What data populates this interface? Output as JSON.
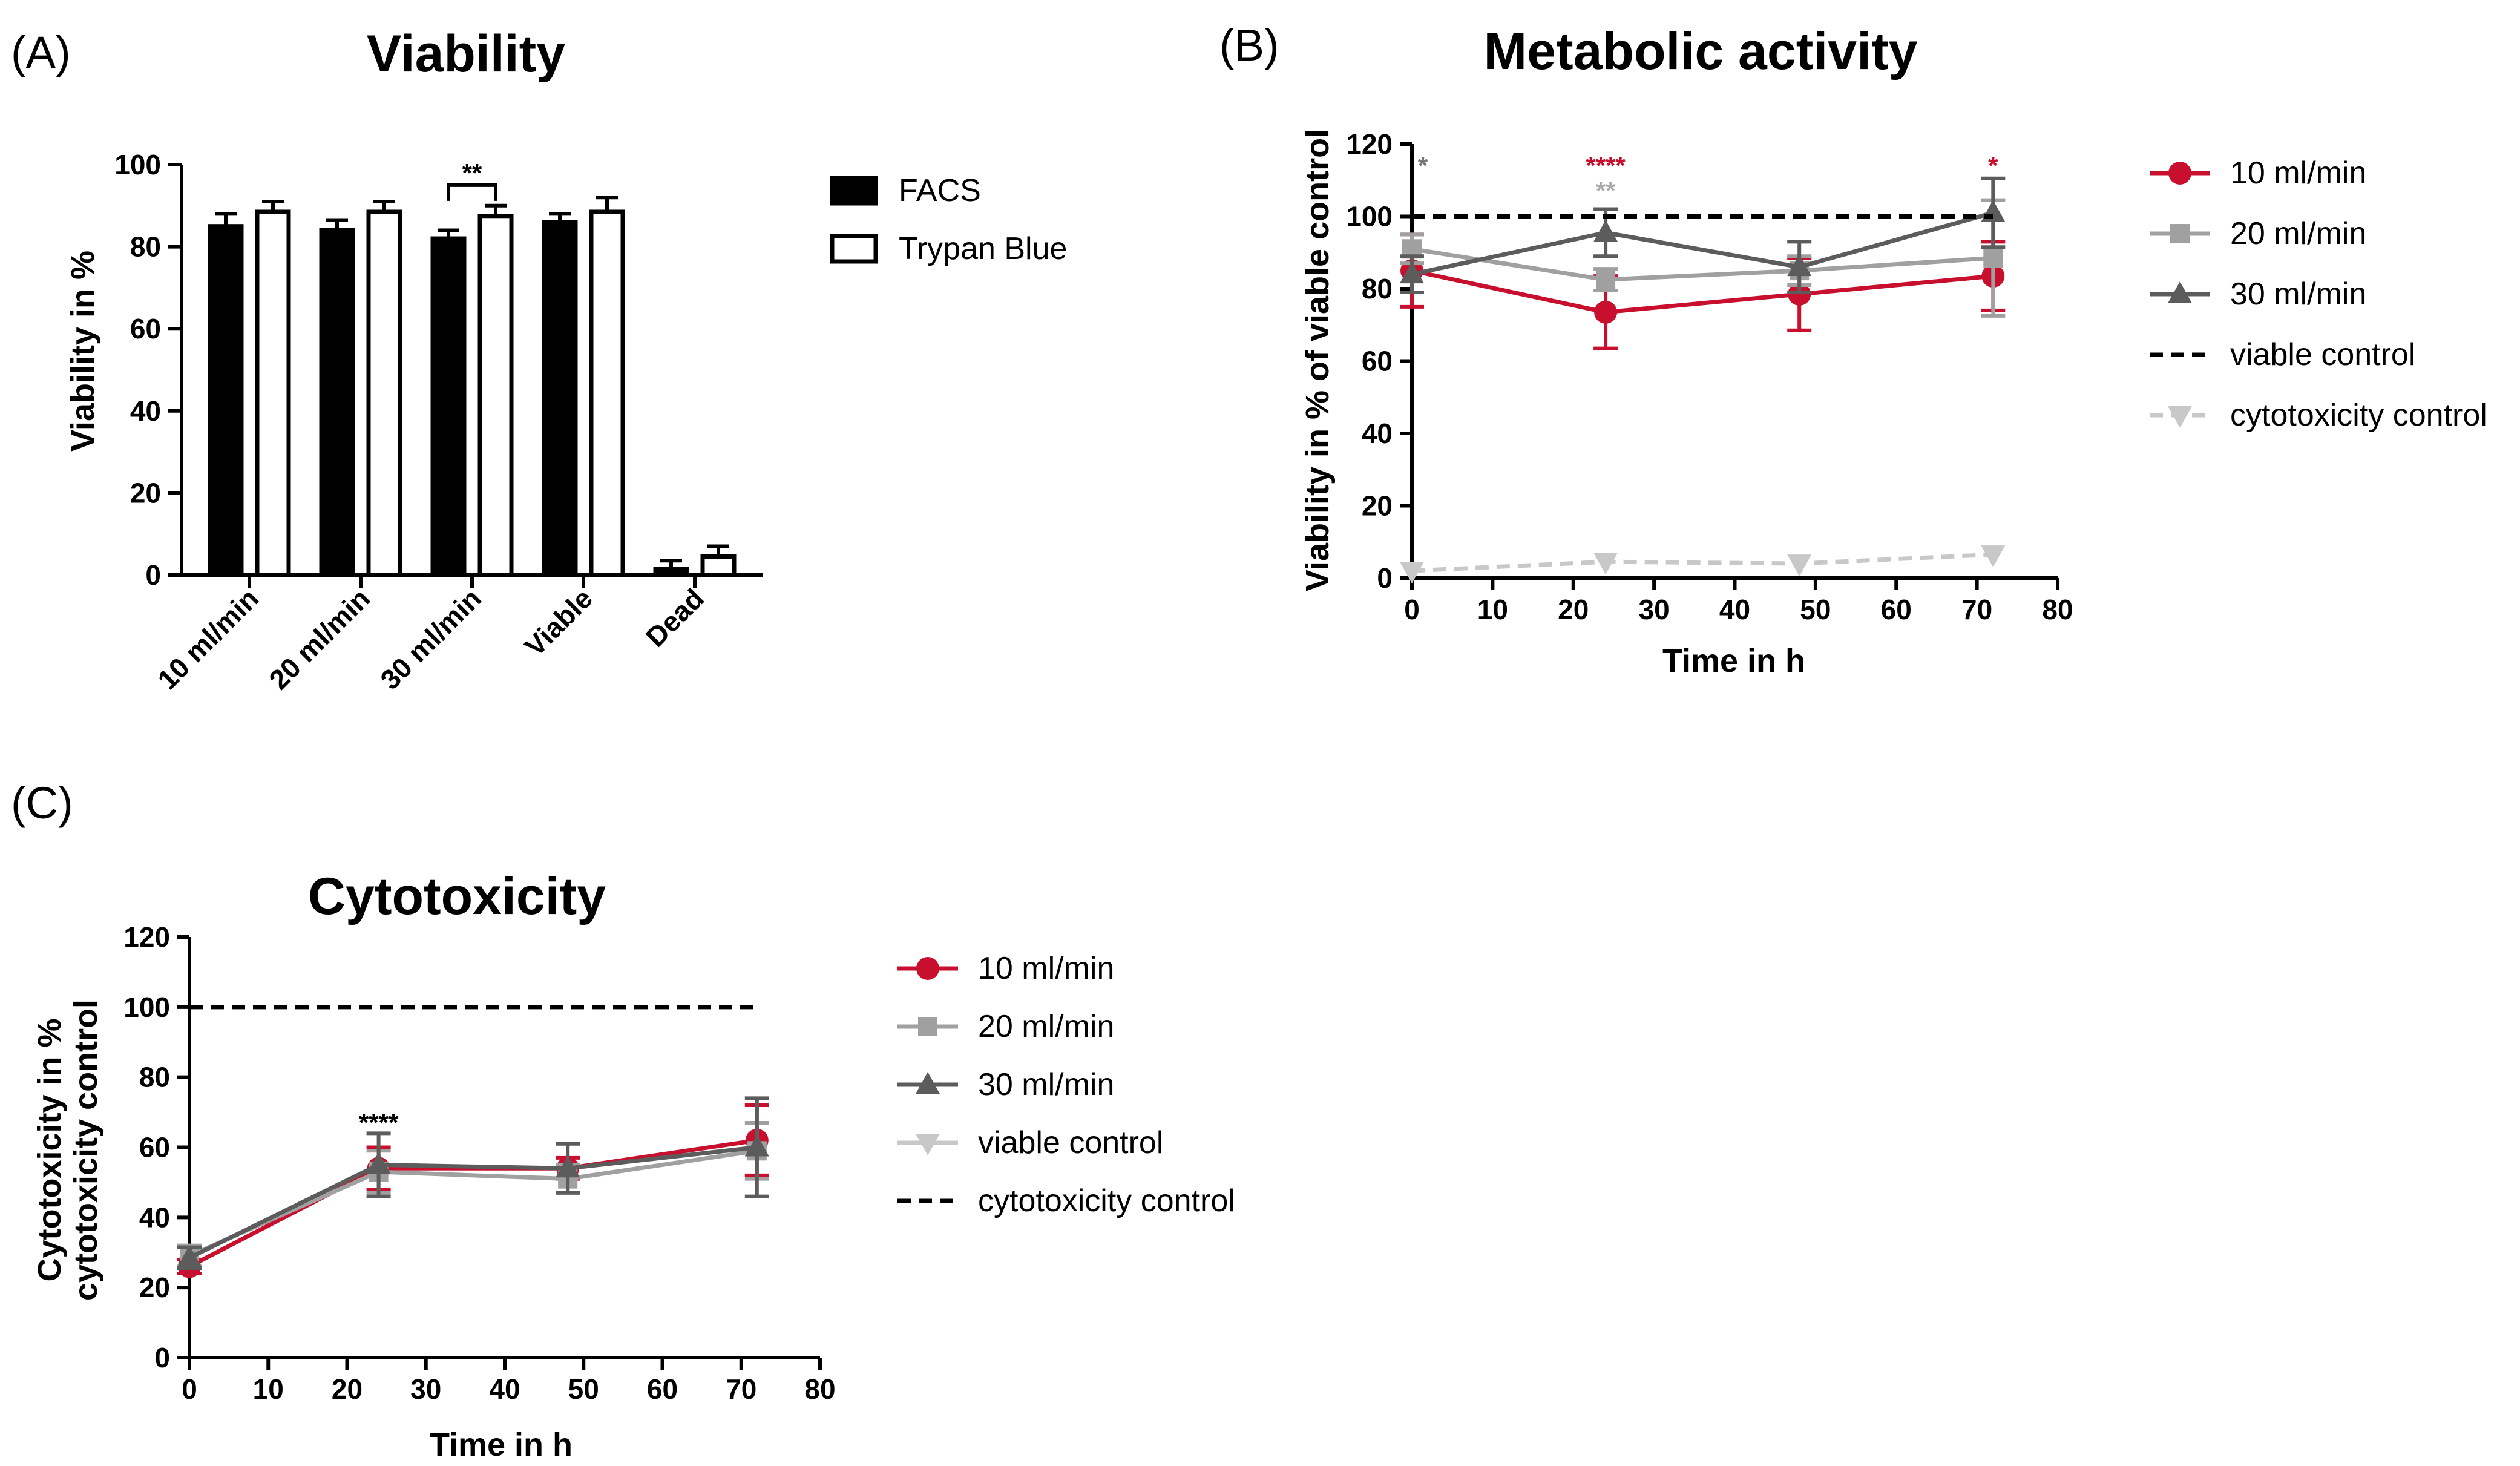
{
  "chart_data": [
    {
      "id": "A",
      "type": "bar",
      "panel_label": "(A)",
      "title": "Viability",
      "xlabel": "",
      "ylabel": "Viability in %",
      "ylim": [
        0,
        100
      ],
      "yticks": [
        0,
        20,
        40,
        60,
        80,
        100
      ],
      "categories": [
        "10 ml/min",
        "20 ml/min",
        "30 ml/min",
        "Viable",
        "Dead"
      ],
      "series": [
        {
          "name": "FACS",
          "fill": "#000000",
          "values": [
            85,
            84,
            82,
            86,
            1.5
          ],
          "errors": [
            3,
            2.5,
            2,
            2,
            2
          ]
        },
        {
          "name": "Trypan Blue",
          "fill": "#ffffff",
          "values": [
            88.5,
            88.5,
            87.5,
            88.5,
            4.5
          ],
          "errors": [
            2.5,
            2.5,
            2.5,
            3.5,
            2.5
          ]
        }
      ],
      "annotations": [
        {
          "text": "**",
          "category": "30 ml/min",
          "between_series": [
            "FACS",
            "Trypan Blue"
          ]
        }
      ]
    },
    {
      "id": "B",
      "type": "line",
      "panel_label": "(B)",
      "title": "Metabolic activity",
      "xlabel": "Time in h",
      "ylabel": "Viability in % of viable control",
      "xlim": [
        0,
        80
      ],
      "ylim": [
        0,
        120
      ],
      "xticks": [
        0,
        10,
        20,
        30,
        40,
        50,
        60,
        70,
        80
      ],
      "yticks": [
        0,
        20,
        40,
        60,
        80,
        100,
        120
      ],
      "series": [
        {
          "name": "10 ml/min",
          "color": "#c8102e",
          "marker": "circle",
          "x": [
            0,
            24,
            48,
            72
          ],
          "y": [
            85,
            73.5,
            78.5,
            83.5
          ],
          "errors": [
            10,
            10,
            10,
            9.5
          ]
        },
        {
          "name": "20 ml/min",
          "color": "#a0a0a0",
          "marker": "square",
          "x": [
            0,
            24,
            48,
            72
          ],
          "y": [
            91,
            82.5,
            85,
            88.5
          ],
          "errors": [
            4,
            3,
            4,
            16
          ]
        },
        {
          "name": "30 ml/min",
          "color": "#5c5c5c",
          "marker": "triangle-up",
          "x": [
            0,
            24,
            48,
            72
          ],
          "y": [
            84,
            95.5,
            86,
            101
          ],
          "errors": [
            5,
            6.5,
            7,
            9.5
          ]
        },
        {
          "name": "viable control",
          "color": "#000000",
          "dashed": true,
          "x": [
            0,
            72
          ],
          "y": [
            100,
            100
          ]
        },
        {
          "name": "cytotoxicity control",
          "color": "#c8c8c8",
          "dashed": true,
          "marker": "triangle-down",
          "x": [
            0,
            24,
            48,
            72
          ],
          "y": [
            2,
            4.5,
            4,
            6.5
          ]
        }
      ],
      "annotations": [
        {
          "text": "*",
          "x": 0,
          "y": 114,
          "color": "#777777"
        },
        {
          "text": "****",
          "x": 24,
          "y": 114,
          "color": "#c8102e"
        },
        {
          "text": "**",
          "x": 24,
          "y": 107,
          "color": "#aaaaaa"
        },
        {
          "text": "*",
          "x": 72,
          "y": 114,
          "color": "#c8102e"
        }
      ]
    },
    {
      "id": "C",
      "type": "line",
      "panel_label": "(C)",
      "title": "Cytotoxicity",
      "xlabel": "Time in h",
      "ylabel": [
        "Cytotoxicity in %",
        "cytotoxicity control"
      ],
      "xlim": [
        0,
        80
      ],
      "ylim": [
        0,
        120
      ],
      "xticks": [
        0,
        10,
        20,
        30,
        40,
        50,
        60,
        70,
        80
      ],
      "yticks": [
        0,
        20,
        40,
        60,
        80,
        100,
        120
      ],
      "series": [
        {
          "name": "10 ml/min",
          "color": "#c8102e",
          "marker": "circle",
          "x": [
            0,
            24,
            48,
            72
          ],
          "y": [
            26,
            54,
            54,
            62
          ],
          "errors": [
            2,
            6,
            3,
            10
          ]
        },
        {
          "name": "20 ml/min",
          "color": "#a0a0a0",
          "marker": "square",
          "x": [
            0,
            24,
            48,
            72
          ],
          "y": [
            29,
            53,
            51,
            59
          ],
          "errors": [
            3,
            6,
            4,
            8
          ]
        },
        {
          "name": "30 ml/min",
          "color": "#5c5c5c",
          "marker": "triangle-up",
          "x": [
            0,
            24,
            48,
            72
          ],
          "y": [
            28.5,
            55,
            54,
            60
          ],
          "errors": [
            3,
            9,
            7,
            14
          ]
        },
        {
          "name": "viable control",
          "color": "#c8c8c8",
          "marker": "triangle-down",
          "legend_only": true,
          "x": [],
          "y": []
        },
        {
          "name": "cytotoxicity control",
          "color": "#000000",
          "dashed": true,
          "x": [
            0,
            72
          ],
          "y": [
            100,
            100
          ]
        }
      ],
      "annotations": [
        {
          "text": "****",
          "x": 24,
          "y": 67,
          "color": "#000000"
        }
      ]
    }
  ]
}
